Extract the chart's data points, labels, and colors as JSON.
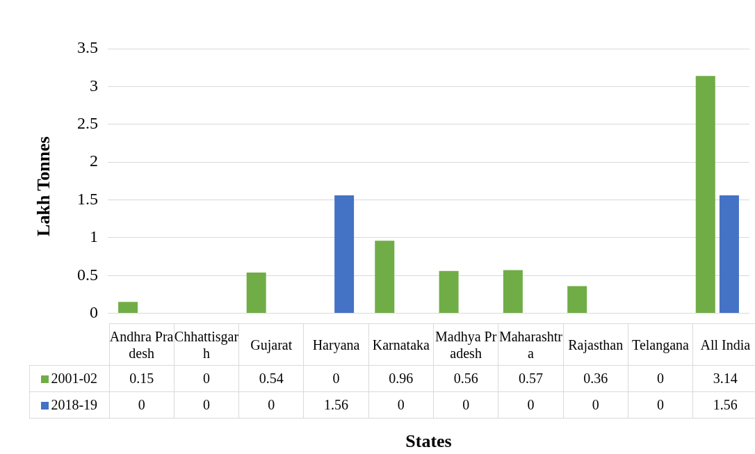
{
  "chart_data": {
    "type": "bar",
    "xlabel": "States",
    "ylabel": "Lakh Tonnes",
    "categories": [
      "Andhra Pradesh",
      "Chhattisgarh",
      "Gujarat",
      "Haryana",
      "Karnataka",
      "Madhya Pradesh",
      "Maharashtra",
      "Rajasthan",
      "Telangana",
      "All India"
    ],
    "series": [
      {
        "name": "2001-02",
        "color": "#70ad47",
        "values": [
          0.15,
          0,
          0.54,
          0,
          0.96,
          0.56,
          0.57,
          0.36,
          0,
          3.14
        ]
      },
      {
        "name": "2018-19",
        "color": "#4472c4",
        "values": [
          0,
          0,
          0,
          1.56,
          0,
          0,
          0,
          0,
          0,
          1.56
        ]
      }
    ],
    "ylim": [
      0,
      3.5
    ],
    "yticks": [
      0,
      0.5,
      1,
      1.5,
      2,
      2.5,
      3,
      3.5
    ],
    "grid": "y",
    "legend": "bottom left",
    "data_labels": true
  }
}
